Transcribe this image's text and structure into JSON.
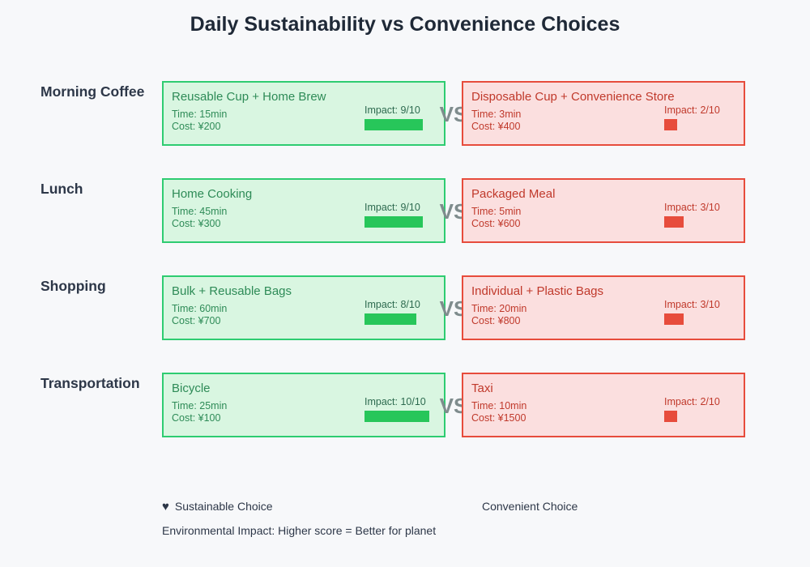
{
  "title": "Daily Sustainability vs Convenience Choices",
  "vs_label": "VS",
  "colors": {
    "background": "#f7f8fa",
    "title_text": "#1f2937",
    "category_text": "#2d3748",
    "sustainable_border": "#2ecc71",
    "sustainable_bg": "#d9f6e1",
    "sustainable_text": "#2e8b57",
    "sustainable_bar": "#27c65a",
    "convenient_border": "#e74c3c",
    "convenient_bg": "#fbdfdf",
    "convenient_text": "#c0392b",
    "convenient_bar": "#e74c3c",
    "vs_text": "#7f8c8d"
  },
  "rows": [
    {
      "category": "Morning Coffee",
      "sustainable": {
        "title": "Reusable Cup + Home Brew",
        "time": "Time: 15min",
        "cost": "Cost: ¥200",
        "impact_label": "Impact: 9/10",
        "impact_score": 9
      },
      "convenient": {
        "title": "Disposable Cup + Convenience Store",
        "time": "Time: 3min",
        "cost": "Cost: ¥400",
        "impact_label": "Impact: 2/10",
        "impact_score": 2
      }
    },
    {
      "category": "Lunch",
      "sustainable": {
        "title": "Home Cooking",
        "time": "Time: 45min",
        "cost": "Cost: ¥300",
        "impact_label": "Impact: 9/10",
        "impact_score": 9
      },
      "convenient": {
        "title": "Packaged Meal",
        "time": "Time: 5min",
        "cost": "Cost: ¥600",
        "impact_label": "Impact: 3/10",
        "impact_score": 3
      }
    },
    {
      "category": "Shopping",
      "sustainable": {
        "title": "Bulk + Reusable Bags",
        "time": "Time: 60min",
        "cost": "Cost: ¥700",
        "impact_label": "Impact: 8/10",
        "impact_score": 8
      },
      "convenient": {
        "title": "Individual + Plastic Bags",
        "time": "Time: 20min",
        "cost": "Cost: ¥800",
        "impact_label": "Impact: 3/10",
        "impact_score": 3
      }
    },
    {
      "category": "Transportation",
      "sustainable": {
        "title": "Bicycle",
        "time": "Time: 25min",
        "cost": "Cost: ¥100",
        "impact_label": "Impact: 10/10",
        "impact_score": 10
      },
      "convenient": {
        "title": "Taxi",
        "time": "Time: 10min",
        "cost": "Cost: ¥1500",
        "impact_label": "Impact: 2/10",
        "impact_score": 2
      }
    }
  ],
  "legend": {
    "sustainable_icon": "♥",
    "sustainable_label": "Sustainable Choice",
    "convenient_label": "Convenient Choice",
    "note": "Environmental Impact: Higher score = Better for planet"
  },
  "chart_data": {
    "type": "table",
    "title": "Daily Sustainability vs Convenience Choices",
    "categories": [
      "Morning Coffee",
      "Lunch",
      "Shopping",
      "Transportation"
    ],
    "series": [
      {
        "name": "Sustainable Choice",
        "options": [
          "Reusable Cup + Home Brew",
          "Home Cooking",
          "Bulk + Reusable Bags",
          "Bicycle"
        ],
        "time_min": [
          15,
          45,
          60,
          25
        ],
        "cost_yen": [
          200,
          300,
          700,
          100
        ],
        "impact": [
          9,
          9,
          8,
          10
        ]
      },
      {
        "name": "Convenient Choice",
        "options": [
          "Disposable Cup + Convenience Store",
          "Packaged Meal",
          "Individual + Plastic Bags",
          "Taxi"
        ],
        "time_min": [
          3,
          5,
          20,
          10
        ],
        "cost_yen": [
          400,
          600,
          800,
          1500
        ],
        "impact": [
          2,
          3,
          3,
          2
        ]
      }
    ],
    "impact_scale": [
      0,
      10
    ],
    "note": "Environmental Impact: Higher score = Better for planet",
    "legend_position": "bottom"
  }
}
